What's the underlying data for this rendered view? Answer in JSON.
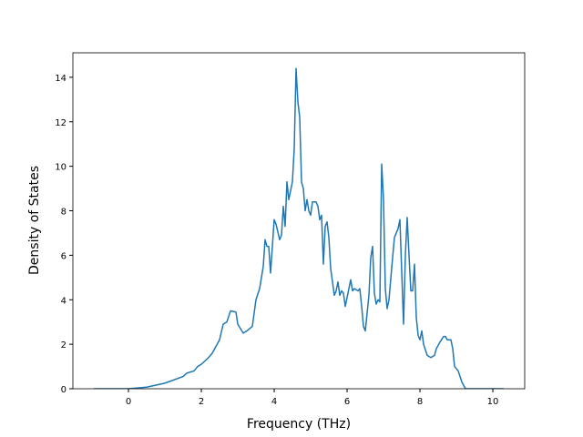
{
  "chart_data": {
    "type": "line",
    "xlabel": "Frequency (THz)",
    "ylabel": "Density of States",
    "xlim": [
      -1.525,
      10.875
    ],
    "ylim": [
      0,
      15.1
    ],
    "xticks": [
      0,
      2,
      4,
      6,
      8,
      10
    ],
    "yticks": [
      0,
      2,
      4,
      6,
      8,
      10,
      12,
      14
    ],
    "grid": false,
    "series": [
      {
        "color": "#1f77b4",
        "x": [
          -0.95,
          0,
          0.5,
          1.0,
          1.5,
          1.6,
          1.8,
          1.9,
          2.0,
          2.2,
          2.3,
          2.5,
          2.6,
          2.7,
          2.8,
          2.95,
          3.0,
          3.15,
          3.25,
          3.4,
          3.5,
          3.6,
          3.7,
          3.75,
          3.8,
          3.85,
          3.9,
          4.0,
          4.05,
          4.15,
          4.2,
          4.25,
          4.3,
          4.35,
          4.4,
          4.5,
          4.55,
          4.6,
          4.65,
          4.7,
          4.75,
          4.8,
          4.85,
          4.9,
          4.95,
          5.0,
          5.05,
          5.15,
          5.2,
          5.25,
          5.3,
          5.35,
          5.4,
          5.45,
          5.5,
          5.55,
          5.6,
          5.65,
          5.7,
          5.75,
          5.8,
          5.85,
          5.9,
          5.95,
          6.0,
          6.05,
          6.1,
          6.15,
          6.2,
          6.3,
          6.35,
          6.4,
          6.45,
          6.5,
          6.6,
          6.65,
          6.7,
          6.75,
          6.8,
          6.85,
          6.9,
          6.95,
          7.0,
          7.05,
          7.1,
          7.15,
          7.25,
          7.3,
          7.4,
          7.45,
          7.55,
          7.6,
          7.65,
          7.7,
          7.75,
          7.8,
          7.85,
          7.9,
          7.95,
          8.0,
          8.05,
          8.1,
          8.2,
          8.3,
          8.4,
          8.45,
          8.55,
          8.65,
          8.7,
          8.75,
          8.85,
          8.9,
          8.95,
          9.05,
          9.15,
          9.25,
          10.3
        ],
        "values": [
          0,
          0,
          0.07,
          0.25,
          0.55,
          0.7,
          0.8,
          1.0,
          1.1,
          1.4,
          1.6,
          2.2,
          2.9,
          3.0,
          3.5,
          3.45,
          2.9,
          2.5,
          2.6,
          2.8,
          4.0,
          4.5,
          5.5,
          6.7,
          6.4,
          6.4,
          5.2,
          7.6,
          7.4,
          6.7,
          6.9,
          8.2,
          7.3,
          9.3,
          8.5,
          9.3,
          10.8,
          14.4,
          12.9,
          12.2,
          9.3,
          9.0,
          8.0,
          8.5,
          8.0,
          7.8,
          8.4,
          8.4,
          8.2,
          7.6,
          7.8,
          5.6,
          7.3,
          7.5,
          6.8,
          5.4,
          4.8,
          4.2,
          4.4,
          4.8,
          4.2,
          4.4,
          4.3,
          3.7,
          4.1,
          4.5,
          4.9,
          4.4,
          4.5,
          4.4,
          4.5,
          3.7,
          2.8,
          2.6,
          4.2,
          5.9,
          6.4,
          4.3,
          3.8,
          4.0,
          3.9,
          10.1,
          8.5,
          4.5,
          3.6,
          4.0,
          5.9,
          6.8,
          7.2,
          7.6,
          2.9,
          6.0,
          7.7,
          6.0,
          4.4,
          4.4,
          5.6,
          3.2,
          2.4,
          2.2,
          2.6,
          2.0,
          1.5,
          1.4,
          1.5,
          1.8,
          2.1,
          2.35,
          2.35,
          2.2,
          2.2,
          1.8,
          1.0,
          0.8,
          0.3,
          0,
          0
        ]
      }
    ]
  }
}
